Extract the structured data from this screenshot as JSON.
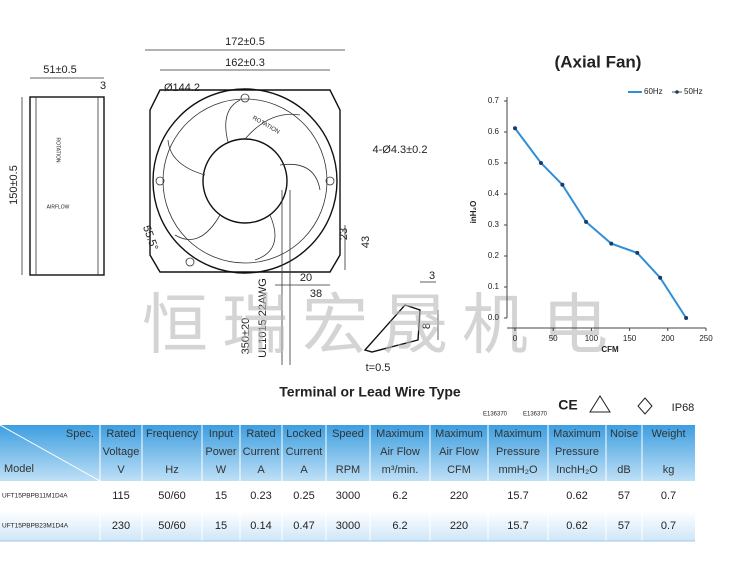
{
  "drawing": {
    "side": {
      "width": "51±0.5",
      "rim": "3",
      "height": "150±0.5",
      "rotation": "ROTATION",
      "airflow": "AIRFLOW"
    },
    "front": {
      "outer": "172±0.5",
      "holes_pitch": "162±0.3",
      "diameter": "Ø144.2",
      "holes": "4-Ø4.3±0.2",
      "angle": "55.5°",
      "d23": "23",
      "d43": "43",
      "d20": "20",
      "d38": "38",
      "lead_length": "350±20",
      "wire": "UL1015 22AWG",
      "rotation": "ROTATION"
    },
    "terminal": {
      "d3": "3",
      "d8": "8",
      "thickness": "t=0.5",
      "caption": "Terminal or Lead Wire Type"
    }
  },
  "certifications": {
    "ul_1": "E136370",
    "ul_2": "E136370",
    "ce": "CE",
    "ip": "IP68"
  },
  "watermark": "恒瑞宏晟机电",
  "chart_data": {
    "type": "line",
    "title": "(Axial Fan)",
    "x_label": "CFM",
    "y_label": "inH₂O",
    "x": [
      0,
      34,
      62,
      93,
      126,
      160,
      190,
      224
    ],
    "series": [
      {
        "name": "60Hz",
        "color": "#2e8fd8",
        "values": [
          0.612,
          0.5,
          0.43,
          0.31,
          0.24,
          0.21,
          0.13,
          0
        ]
      }
    ],
    "legend_extra": "50Hz",
    "xlim": [
      0,
      250
    ],
    "xticks": [
      0,
      50,
      100,
      150,
      200,
      250
    ],
    "ylim": [
      0,
      0.7
    ],
    "yticks": [
      {
        "value": 0,
        "label": "0.0"
      },
      0.1,
      0.2,
      0.3,
      0.4,
      0.5,
      0.6,
      0.7
    ],
    "grid": false,
    "legend": "top-right"
  },
  "table": {
    "header": [
      [
        "Spec.",
        "Model"
      ],
      [
        "Rated",
        "Voltage",
        "V"
      ],
      [
        "Frequency",
        "",
        "Hz"
      ],
      [
        "Input",
        "Power",
        "W"
      ],
      [
        "Rated",
        "Current",
        "A"
      ],
      [
        "Locked",
        "Current",
        "A"
      ],
      [
        "Speed",
        "",
        "RPM"
      ],
      [
        "Maximum",
        "Air Flow",
        "m³/min."
      ],
      [
        "Maximum",
        "Air Flow",
        "CFM"
      ],
      [
        "Maximum",
        "Pressure",
        "mmH₂O"
      ],
      [
        "Maximum",
        "Pressure",
        "InchH₂O"
      ],
      [
        "Noise",
        "",
        "dB"
      ],
      [
        "Weight",
        "",
        "kg"
      ]
    ],
    "rows": [
      [
        "UFT15PBPB11M1D4A",
        "115",
        "50/60",
        "15",
        "0.23",
        "0.25",
        "3000",
        "6.2",
        "220",
        "15.7",
        "0.62",
        "57",
        "0.7"
      ],
      [
        "UFT15PBPB23M1D4A",
        "230",
        "50/60",
        "15",
        "0.14",
        "0.47",
        "3000",
        "6.2",
        "220",
        "15.7",
        "0.62",
        "57",
        "0.7"
      ]
    ]
  }
}
